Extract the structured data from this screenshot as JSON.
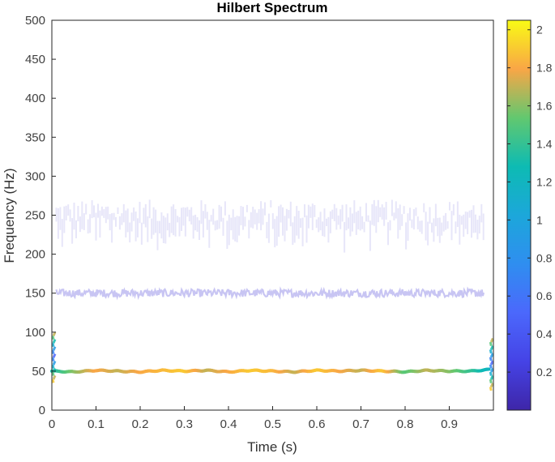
{
  "chart_data": {
    "type": "heatmap",
    "title": "Hilbert Spectrum",
    "xlabel": "Time (s)",
    "ylabel": "Frequency (Hz)",
    "xlim": [
      0,
      1
    ],
    "ylim": [
      0,
      500
    ],
    "xticks": [
      "0",
      "0.1",
      "0.2",
      "0.3",
      "0.4",
      "0.5",
      "0.6",
      "0.7",
      "0.8",
      "0.9"
    ],
    "yticks": [
      "0",
      "50",
      "100",
      "150",
      "200",
      "250",
      "300",
      "350",
      "400",
      "450",
      "500"
    ],
    "colorbar": {
      "range": [
        0,
        2.05
      ],
      "ticks": [
        "0.2",
        "0.4",
        "0.6",
        "0.8",
        "1",
        "1.2",
        "1.4",
        "1.6",
        "1.8",
        "2"
      ],
      "colormap": "parula"
    },
    "grid": false,
    "series": [
      {
        "center_frequency": 50,
        "time_range": [
          0,
          1
        ],
        "amplitude": 1.8,
        "points": [
          [
            0.0,
            50,
            1.3
          ],
          [
            0.05,
            49,
            1.6
          ],
          [
            0.1,
            51,
            1.8
          ],
          [
            0.15,
            50,
            1.7
          ],
          [
            0.2,
            49,
            1.8
          ],
          [
            0.25,
            51,
            1.85
          ],
          [
            0.3,
            50,
            1.9
          ],
          [
            0.35,
            51,
            1.7
          ],
          [
            0.4,
            49,
            1.8
          ],
          [
            0.45,
            51,
            1.9
          ],
          [
            0.5,
            50,
            1.85
          ],
          [
            0.55,
            49,
            1.7
          ],
          [
            0.6,
            51,
            1.9
          ],
          [
            0.65,
            50,
            1.8
          ],
          [
            0.7,
            51,
            1.7
          ],
          [
            0.75,
            50,
            1.9
          ],
          [
            0.8,
            49,
            1.5
          ],
          [
            0.85,
            51,
            1.7
          ],
          [
            0.9,
            50,
            1.6
          ],
          [
            0.95,
            50,
            1.4
          ],
          [
            0.99,
            52,
            1.2
          ]
        ]
      },
      {
        "center_frequency": 150,
        "time_range": [
          0.01,
          0.98
        ],
        "amplitude": 0.35
      },
      {
        "center_frequency": 255,
        "time_range": [
          0.01,
          0.98
        ],
        "amplitude": 0.12
      }
    ],
    "edge_effects": [
      {
        "time": 0.0,
        "frequency_range": [
          35,
          100
        ]
      },
      {
        "time": 0.995,
        "frequency_range": [
          25,
          92
        ]
      }
    ]
  }
}
